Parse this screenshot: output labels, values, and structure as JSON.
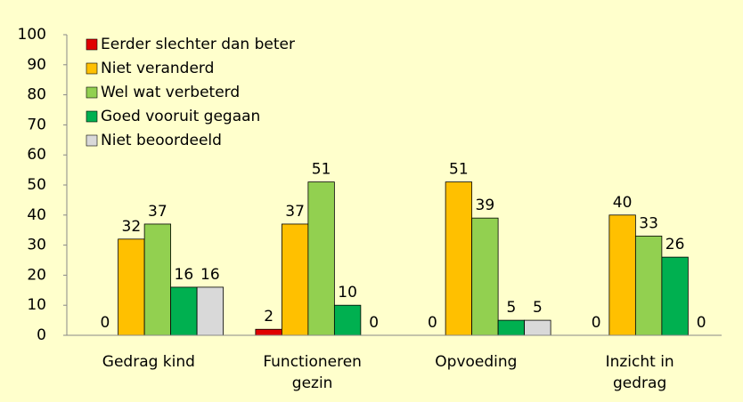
{
  "chart_data": {
    "type": "bar",
    "categories": [
      "Gedrag kind",
      "Functioneren gezin",
      "Opvoeding",
      "Inzicht in gedrag"
    ],
    "series": [
      {
        "name": "Eerder slechter dan beter",
        "color": "#e00000",
        "values": [
          0,
          2,
          0,
          0
        ]
      },
      {
        "name": "Niet veranderd",
        "color": "#ffc000",
        "values": [
          32,
          37,
          51,
          40
        ]
      },
      {
        "name": "Wel wat verbeterd",
        "color": "#92d050",
        "values": [
          37,
          51,
          39,
          33
        ]
      },
      {
        "name": "Goed vooruit gegaan",
        "color": "#00b050",
        "values": [
          16,
          10,
          5,
          26
        ]
      },
      {
        "name": "Niet beoordeeld",
        "color": "#d9d9d9",
        "values": [
          16,
          0,
          5,
          0
        ]
      }
    ],
    "ylim": [
      0,
      100
    ],
    "yticks": [
      0,
      10,
      20,
      30,
      40,
      50,
      60,
      70,
      80,
      90,
      100
    ],
    "grid": false,
    "legend": "top-left"
  }
}
